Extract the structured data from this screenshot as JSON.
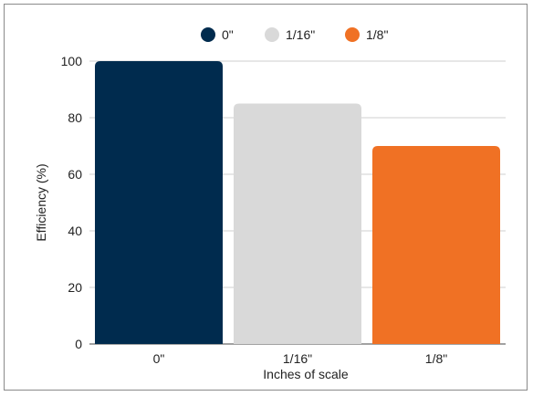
{
  "chart_data": {
    "type": "bar",
    "categories": [
      "0\"",
      "1/16\"",
      "1/8\""
    ],
    "values": [
      100,
      85,
      70
    ],
    "colors": [
      "#002b4e",
      "#d9d9d9",
      "#f07124"
    ],
    "legend": [
      "0\"",
      "1/16\"",
      "1/8\""
    ],
    "legend_position": "top-center",
    "xlabel": "Inches of scale",
    "ylabel": "Efficiency (%)",
    "ylim": [
      0,
      100
    ],
    "yticks": [
      0,
      20,
      40,
      60,
      80,
      100
    ],
    "grid": true
  }
}
